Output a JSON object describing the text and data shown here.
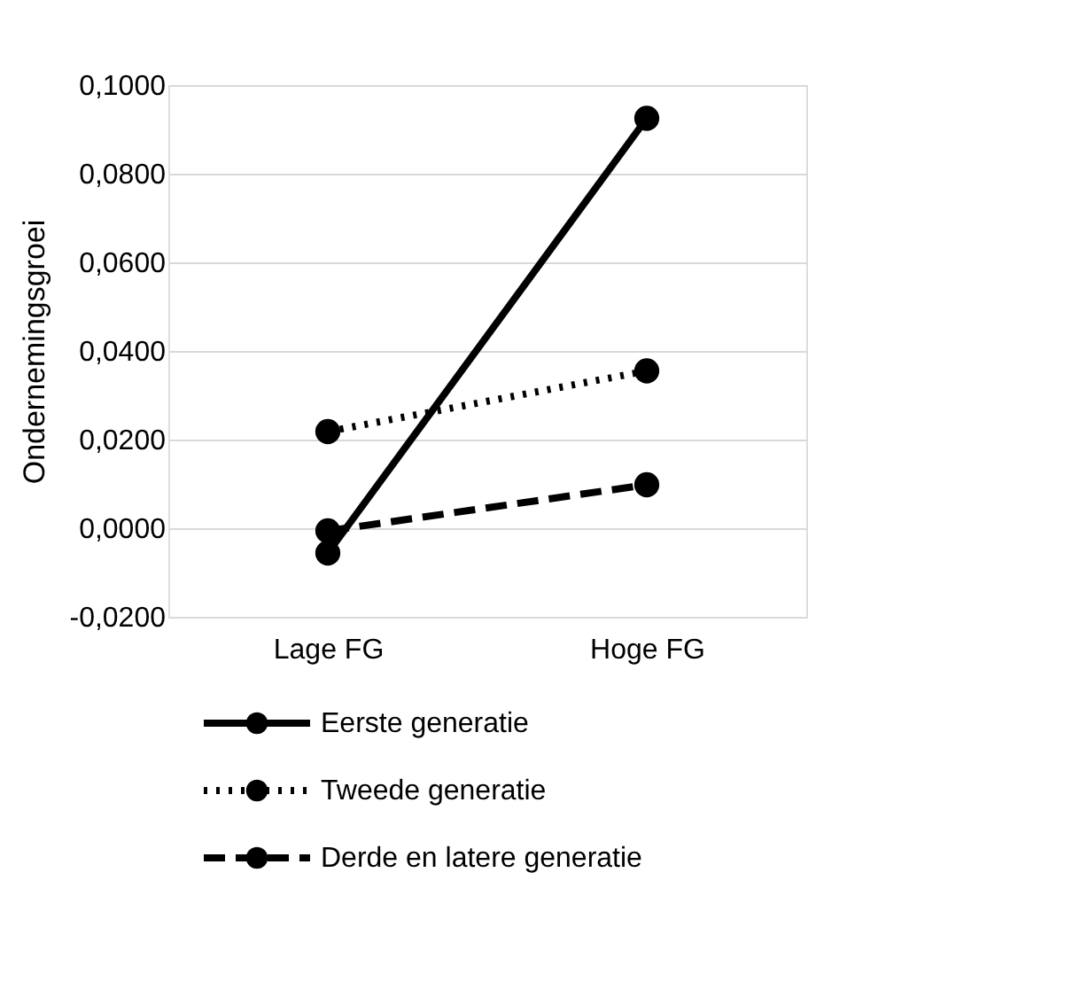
{
  "chart_data": {
    "type": "line",
    "ylabel": "Ondernemingsgroei",
    "categories": [
      "Lage FG",
      "Hoge FG"
    ],
    "series": [
      {
        "name": "Eerste generatie",
        "color": "#000000",
        "line_style": "solid",
        "values": [
          -0.0056,
          0.0925
        ]
      },
      {
        "name": "Tweede generatie",
        "color": "#000000",
        "line_style": "dotted",
        "values": [
          0.0218,
          0.0355
        ]
      },
      {
        "name": "Derde en latere generatie",
        "color": "#000000",
        "line_style": "dashed",
        "values": [
          -0.0006,
          0.0098
        ]
      }
    ],
    "ylim": [
      -0.02,
      0.1
    ],
    "yticks": [
      {
        "value": -0.02,
        "label": "-0,0200"
      },
      {
        "value": 0,
        "label": "0,0000"
      },
      {
        "value": 0.02,
        "label": "0,0200"
      },
      {
        "value": 0.04,
        "label": "0,0400"
      },
      {
        "value": 0.06,
        "label": "0,0600"
      },
      {
        "value": 0.08,
        "label": "0,0800"
      },
      {
        "value": 0.1,
        "label": "0,1000"
      }
    ],
    "grid": "y",
    "legend": "bottom",
    "marker": "circle"
  }
}
